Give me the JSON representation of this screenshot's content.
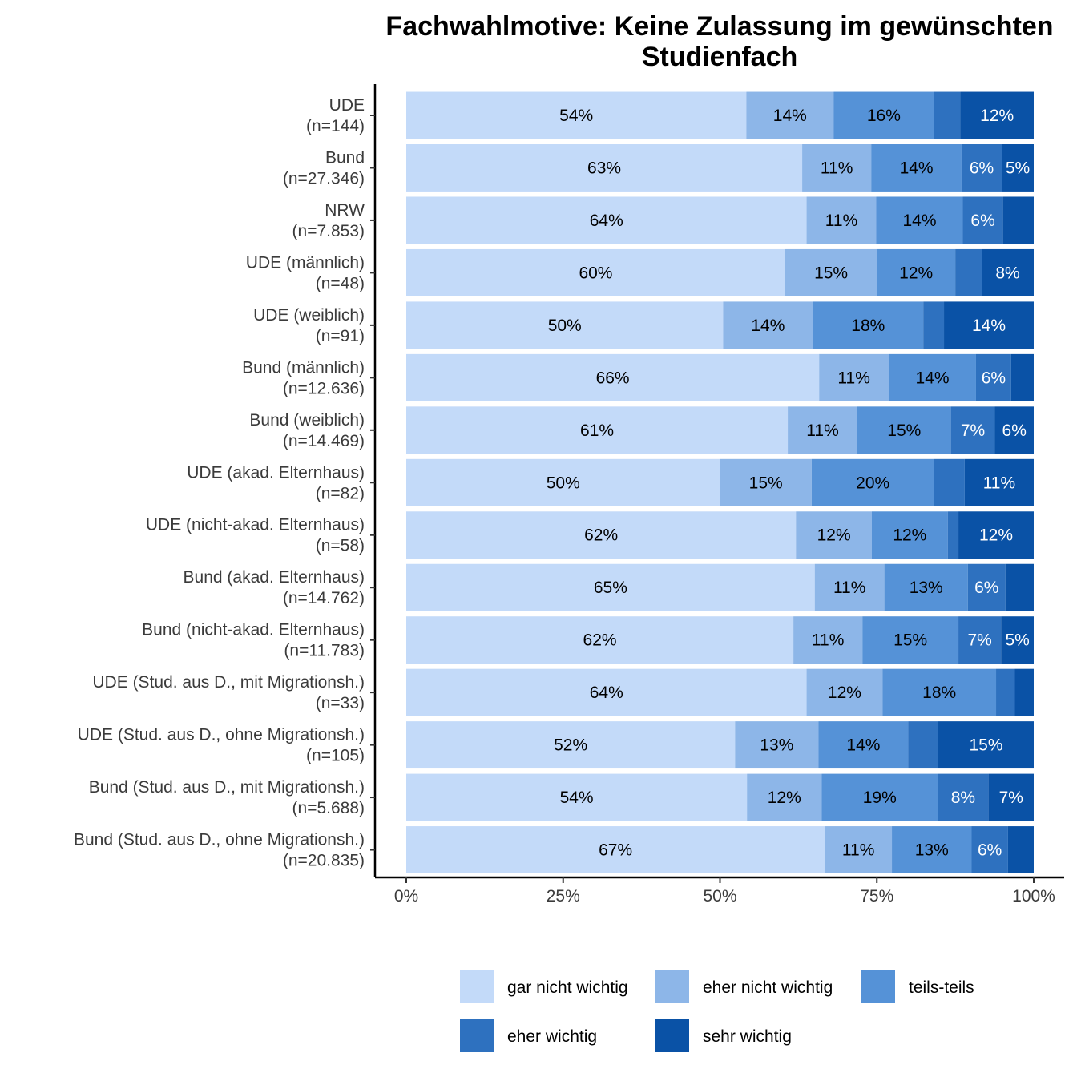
{
  "chart_data": {
    "type": "bar",
    "orientation": "horizontal",
    "stacked": true,
    "title": [
      "Fachwahlmotive: Keine Zulassung im gewünschten",
      "Studienfach"
    ],
    "categories": [
      [
        "UDE",
        "(n=144)"
      ],
      [
        "Bund",
        "(n=27.346)"
      ],
      [
        "NRW",
        "(n=7.853)"
      ],
      [
        "UDE (männlich)",
        "(n=48)"
      ],
      [
        "UDE (weiblich)",
        "(n=91)"
      ],
      [
        "Bund (männlich)",
        "(n=12.636)"
      ],
      [
        "Bund (weiblich)",
        "(n=14.469)"
      ],
      [
        "UDE (akad. Elternhaus)",
        "(n=82)"
      ],
      [
        "UDE (nicht-akad. Elternhaus)",
        "(n=58)"
      ],
      [
        "Bund (akad. Elternhaus)",
        "(n=14.762)"
      ],
      [
        "Bund (nicht-akad. Elternhaus)",
        "(n=11.783)"
      ],
      [
        "UDE (Stud. aus D., mit Migrationsh.)",
        "(n=33)"
      ],
      [
        "UDE (Stud. aus D., ohne Migrationsh.)",
        "(n=105)"
      ],
      [
        "Bund (Stud. aus D., mit Migrationsh.)",
        "(n=5.688)"
      ],
      [
        "Bund (Stud. aus D., ohne Migrationsh.)",
        "(n=20.835)"
      ]
    ],
    "series": [
      {
        "name": "gar nicht wichtig",
        "color": "#c3daf9",
        "label_color": "#000000",
        "values": [
          54.2,
          63.1,
          63.8,
          60.4,
          50.5,
          65.8,
          60.8,
          50.0,
          62.1,
          65.1,
          61.7,
          63.8,
          52.4,
          54.3,
          66.7
        ]
      },
      {
        "name": "eher nicht wichtig",
        "color": "#8db6e8",
        "label_color": "#000000",
        "values": [
          13.9,
          11.0,
          11.1,
          14.6,
          14.3,
          11.1,
          11.1,
          14.6,
          12.1,
          11.1,
          11.0,
          12.1,
          13.3,
          11.9,
          10.7
        ]
      },
      {
        "name": "teils-teils",
        "color": "#5592d7",
        "label_color": "#000000",
        "values": [
          16.0,
          14.4,
          13.8,
          12.5,
          17.6,
          13.9,
          14.9,
          19.5,
          12.1,
          13.3,
          15.3,
          18.1,
          14.3,
          18.5,
          12.7
        ]
      },
      {
        "name": "eher wichtig",
        "color": "#2e71bf",
        "label_color": "#ffffff",
        "values": [
          4.2,
          6.4,
          6.4,
          4.2,
          3.3,
          5.6,
          7.0,
          4.9,
          1.7,
          6.0,
          6.8,
          3.0,
          4.8,
          8.1,
          5.8
        ]
      },
      {
        "name": "sehr wichtig",
        "color": "#0a52a6",
        "label_color": "#ffffff",
        "values": [
          11.7,
          5.1,
          4.9,
          8.3,
          14.3,
          3.6,
          6.2,
          11.0,
          12.0,
          4.5,
          5.2,
          3.0,
          15.2,
          7.2,
          4.1
        ]
      }
    ],
    "data_labels": [
      [
        "54%",
        "14%",
        "16%",
        "",
        "12%"
      ],
      [
        "63%",
        "11%",
        "14%",
        "6%",
        "5%"
      ],
      [
        "64%",
        "11%",
        "14%",
        "6%",
        ""
      ],
      [
        "60%",
        "15%",
        "12%",
        "",
        "8%"
      ],
      [
        "50%",
        "14%",
        "18%",
        "",
        "14%"
      ],
      [
        "66%",
        "11%",
        "14%",
        "6%",
        ""
      ],
      [
        "61%",
        "11%",
        "15%",
        "7%",
        "6%"
      ],
      [
        "50%",
        "15%",
        "20%",
        "",
        "11%"
      ],
      [
        "62%",
        "12%",
        "12%",
        "",
        "12%"
      ],
      [
        "65%",
        "11%",
        "13%",
        "6%",
        ""
      ],
      [
        "62%",
        "11%",
        "15%",
        "7%",
        "5%"
      ],
      [
        "64%",
        "12%",
        "18%",
        "",
        ""
      ],
      [
        "52%",
        "13%",
        "14%",
        "",
        "15%"
      ],
      [
        "54%",
        "12%",
        "19%",
        "8%",
        "7%"
      ],
      [
        "67%",
        "11%",
        "13%",
        "6%",
        ""
      ]
    ],
    "x_ticks": [
      0,
      25,
      50,
      75,
      100
    ],
    "x_tick_labels": [
      "0%",
      "25%",
      "50%",
      "75%",
      "100%"
    ],
    "xlim": [
      0,
      100
    ],
    "xlabel": "",
    "ylabel": "",
    "grid": false,
    "legend_position": "bottom"
  }
}
